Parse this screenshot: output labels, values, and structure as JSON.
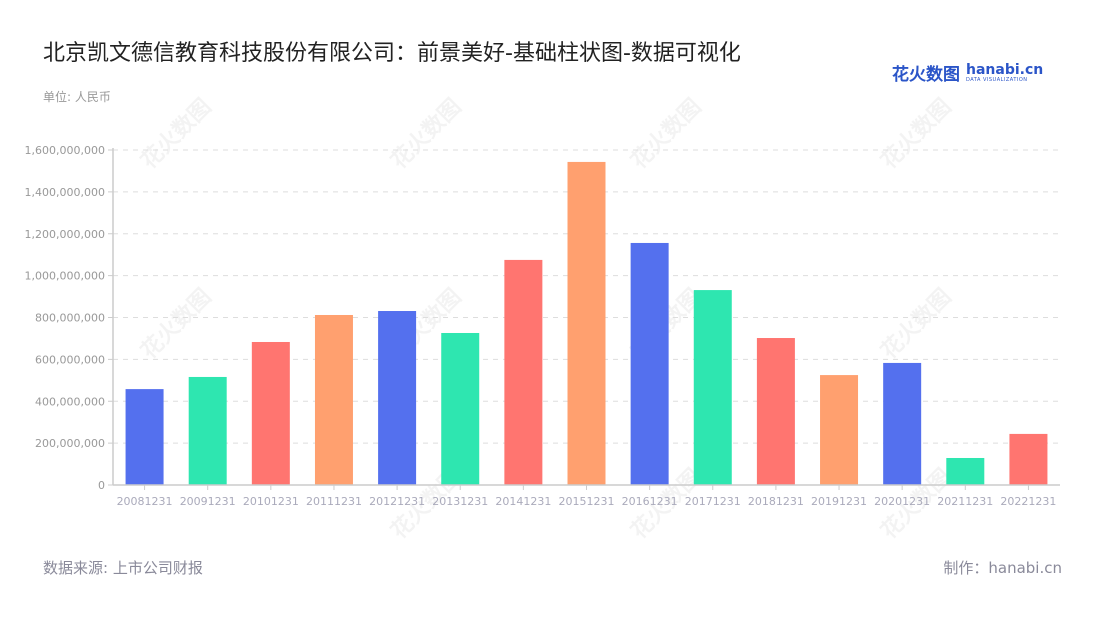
{
  "header": {
    "title": "北京凯文德信教育科技股份有限公司：前景美好-基础柱状图-数据可视化",
    "unit": "单位: 人民币",
    "logo_cn": "花火数图",
    "logo_en": "hanabi.cn",
    "logo_sub": "DATA VISUALIZATION"
  },
  "footer": {
    "source": "数据来源: 上市公司财报",
    "credit": "制作：hanabi.cn"
  },
  "colors": {
    "palette": [
      "#5470ee",
      "#2ee6b0",
      "#ff7570",
      "#ffa06f"
    ],
    "grid": "#dddddd",
    "axis": "#cccccc"
  },
  "chart_data": {
    "type": "bar",
    "title": "北京凯文德信教育科技股份有限公司：前景美好-基础柱状图-数据可视化",
    "xlabel": "",
    "ylabel": "单位: 人民币",
    "categories": [
      "20081231",
      "20091231",
      "20101231",
      "20111231",
      "20121231",
      "20131231",
      "20141231",
      "20151231",
      "20161231",
      "20171231",
      "20181231",
      "20191231",
      "20201231",
      "20211231",
      "20221231"
    ],
    "values": [
      458000000,
      516000000,
      683000000,
      812000000,
      831000000,
      726000000,
      1075000000,
      1543000000,
      1156000000,
      931000000,
      702000000,
      525000000,
      583000000,
      129000000,
      244000000
    ],
    "bar_colors": [
      "#5470ee",
      "#2ee6b0",
      "#ff7570",
      "#ffa06f",
      "#5470ee",
      "#2ee6b0",
      "#ff7570",
      "#ffa06f",
      "#5470ee",
      "#2ee6b0",
      "#ff7570",
      "#ffa06f",
      "#5470ee",
      "#2ee6b0",
      "#ff7570"
    ],
    "ylim": [
      0,
      1600000000
    ],
    "yticks": [
      0,
      200000000,
      400000000,
      600000000,
      800000000,
      1000000000,
      1200000000,
      1400000000,
      1600000000
    ],
    "ytick_labels": [
      "0",
      "200,000,000",
      "400,000,000",
      "600,000,000",
      "800,000,000",
      "1,000,000,000",
      "1,200,000,000",
      "1,400,000,000",
      "1,600,000,000"
    ],
    "grid": true,
    "grid_style": "dashed",
    "legend": "none"
  }
}
